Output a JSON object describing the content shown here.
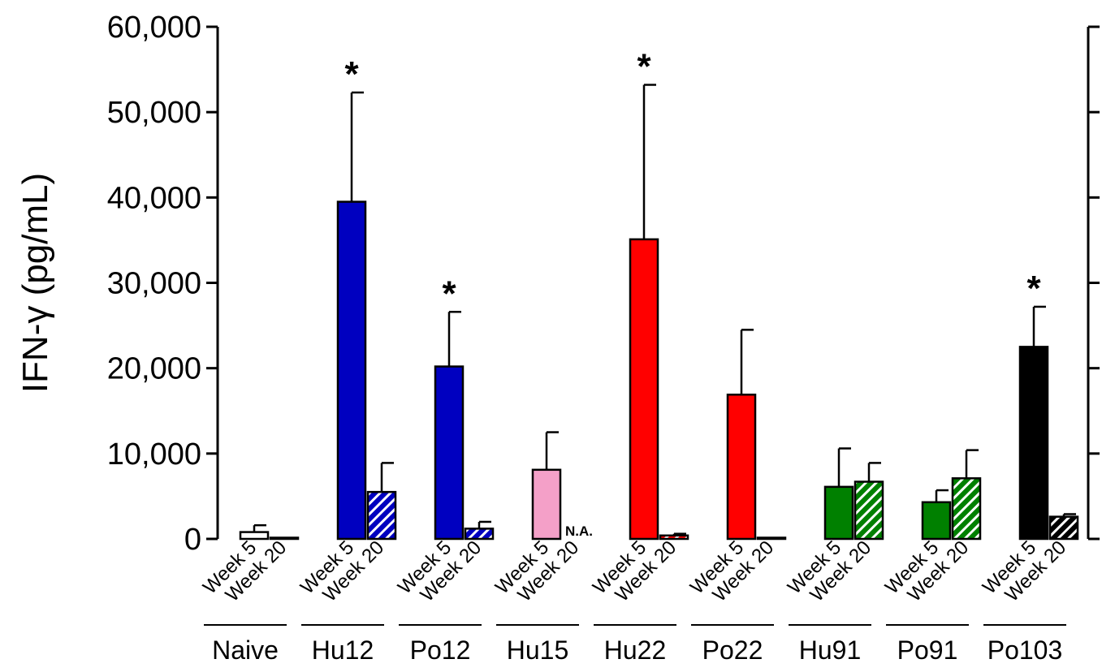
{
  "chart_data": {
    "type": "bar",
    "ylabel": "IFN-γ (pg/mL)",
    "ylim": [
      0,
      60000
    ],
    "yticks": [
      0,
      10000,
      20000,
      30000,
      40000,
      50000,
      60000
    ],
    "ytick_labels": [
      "0",
      "10,000",
      "20,000",
      "30,000",
      "40,000",
      "50,000",
      "60,000"
    ],
    "sub_categories": [
      "Week 5",
      "Week 20"
    ],
    "grid": false,
    "groups": [
      {
        "name": "Naive",
        "color": "#ffffff",
        "week5": 800,
        "week5_err": 800,
        "week20": 0,
        "week20_err": 0,
        "significance": [
          "",
          ""
        ],
        "note": ""
      },
      {
        "name": "Hu12",
        "color": "#0000c0",
        "week5": 39500,
        "week5_err": 12800,
        "week20": 5500,
        "week20_err": 3400,
        "significance": [
          "*",
          ""
        ],
        "note": ""
      },
      {
        "name": "Po12",
        "color": "#0000c0",
        "week5": 20200,
        "week5_err": 6400,
        "week20": 1200,
        "week20_err": 800,
        "significance": [
          "*",
          ""
        ],
        "note": ""
      },
      {
        "name": "Hu15",
        "color": "#f4a0c8",
        "week5": 8100,
        "week5_err": 4400,
        "week20": null,
        "week20_err": null,
        "significance": [
          "",
          ""
        ],
        "note": "N.A."
      },
      {
        "name": "Hu22",
        "color": "#ff0000",
        "week5": 35100,
        "week5_err": 18100,
        "week20": 400,
        "week20_err": 200,
        "significance": [
          "*",
          ""
        ],
        "note": ""
      },
      {
        "name": "Po22",
        "color": "#ff0000",
        "week5": 16900,
        "week5_err": 7600,
        "week20": 0,
        "week20_err": 0,
        "significance": [
          "",
          ""
        ],
        "note": ""
      },
      {
        "name": "Hu91",
        "color": "#008000",
        "week5": 6100,
        "week5_err": 4500,
        "week20": 6700,
        "week20_err": 2200,
        "significance": [
          "",
          ""
        ],
        "note": ""
      },
      {
        "name": "Po91",
        "color": "#008000",
        "week5": 4300,
        "week5_err": 1400,
        "week20": 7100,
        "week20_err": 3300,
        "significance": [
          "",
          ""
        ],
        "note": ""
      },
      {
        "name": "Po103",
        "color": "#000000",
        "week5": 22500,
        "week5_err": 4700,
        "week20": 2600,
        "week20_err": 300,
        "significance": [
          "*",
          ""
        ],
        "note": ""
      }
    ]
  }
}
